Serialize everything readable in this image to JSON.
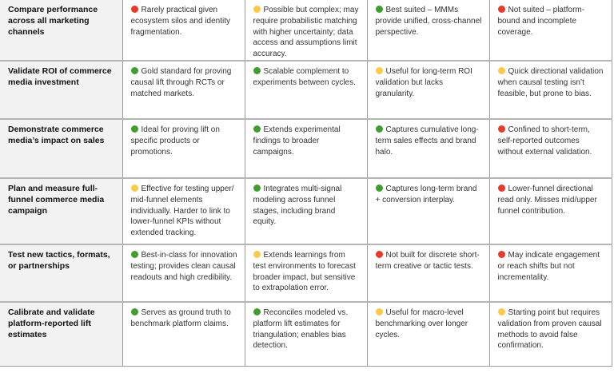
{
  "colors": {
    "red": "#e8392a",
    "yellow": "#fcc94a",
    "green": "#3f9e2f",
    "label_bg": "#f2f2f2"
  },
  "rows": [
    {
      "label": "Compare performance across all marketing channels",
      "cells": [
        {
          "rating": "red",
          "text": "Rarely practical given ecosystem silos and identity fragmentation."
        },
        {
          "rating": "yellow",
          "text": "Possible but complex; may require probabilistic matching with higher uncertainty;  data access and assumptions limit accuracy."
        },
        {
          "rating": "green",
          "text": "Best suited – MMMs provide unified, cross-channel perspective."
        },
        {
          "rating": "red",
          "text": "Not suited – platform-bound and incomplete coverage."
        }
      ]
    },
    {
      "label": "Validate ROI of commerce media investment",
      "cells": [
        {
          "rating": "green",
          "text": "Gold standard for proving causal lift through RCTs or matched markets."
        },
        {
          "rating": "green",
          "text": "Scalable complement to experiments between cycles."
        },
        {
          "rating": "yellow",
          "text": "Useful for long-term ROI validation but lacks granularity."
        },
        {
          "rating": "yellow",
          "text": "Quick directional validation when causal testing isn’t feasible, but prone to bias."
        }
      ]
    },
    {
      "label": "Demonstrate commerce media’s impact on sales",
      "cells": [
        {
          "rating": "green",
          "text": "Ideal for proving lift on specific products or promotions."
        },
        {
          "rating": "green",
          "text": "Extends experimental findings to broader campaigns."
        },
        {
          "rating": "green",
          "text": "Captures cumulative long-term sales effects and brand halo."
        },
        {
          "rating": "red",
          "text": "Confined to short-term, self-reported outcomes without external validation."
        }
      ]
    },
    {
      "label": "Plan and measure full-funnel commerce media campaign",
      "cells": [
        {
          "rating": "yellow",
          "text": "Effective for testing upper/ mid-funnel elements individually. Harder to link to lower-funnel KPIs without extended tracking."
        },
        {
          "rating": "green",
          "text": "Integrates multi-signal modeling across funnel stages, including brand equity."
        },
        {
          "rating": "green",
          "text": "Captures long-term brand + conversion interplay."
        },
        {
          "rating": "red",
          "text": "Lower-funnel directional read only. Misses mid/upper funnel contribution."
        }
      ]
    },
    {
      "label": "Test new tactics, formats, or partnerships",
      "cells": [
        {
          "rating": "green",
          "text": "Best-in-class for innovation testing; provides clean causal readouts and high credibility."
        },
        {
          "rating": "yellow",
          "text": "Extends learnings from test environments to forecast broader impact, but sensitive to extrapolation error."
        },
        {
          "rating": "red",
          "text": "Not built for discrete short-term creative or tactic tests."
        },
        {
          "rating": "red",
          "text": "May indicate engagement or reach shifts but not incrementality."
        }
      ]
    },
    {
      "label": "Calibrate and validate platform-reported lift estimates",
      "cells": [
        {
          "rating": "green",
          "text": "Serves as ground truth to benchmark platform claims."
        },
        {
          "rating": "green",
          "text": "Reconciles modeled vs. platform lift estimates for triangulation; enables bias detection."
        },
        {
          "rating": "yellow",
          "text": "Useful for macro-level benchmarking over longer cycles."
        },
        {
          "rating": "yellow",
          "text": "Starting point but requires validation from proven causal methods to avoid false confirmation."
        }
      ]
    }
  ]
}
